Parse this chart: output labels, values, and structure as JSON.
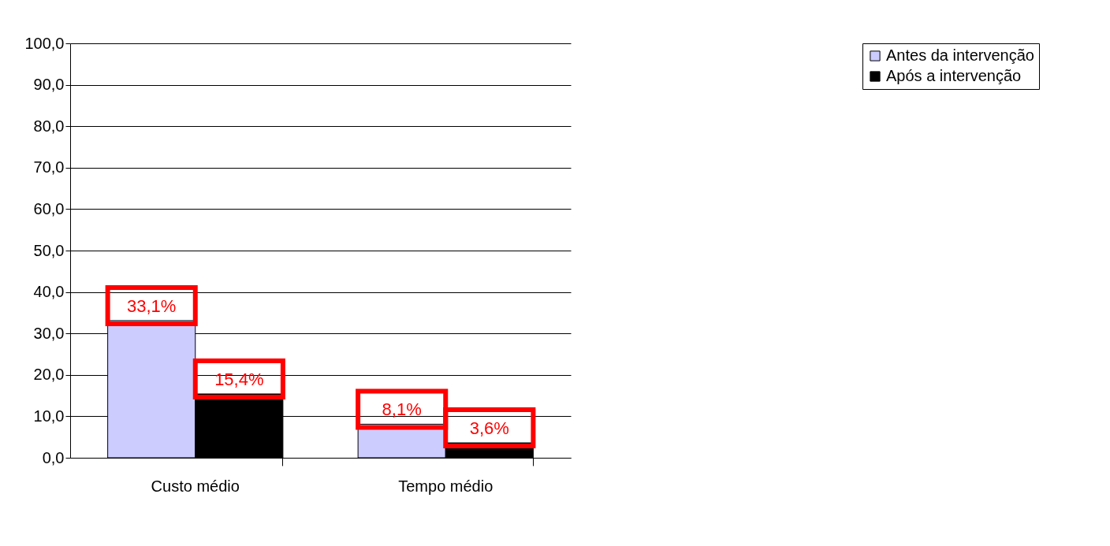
{
  "chart_data": {
    "type": "bar",
    "categories": [
      "Custo médio",
      "Tempo médio"
    ],
    "series": [
      {
        "name": "Antes da intervenção",
        "color": "#ccccff",
        "values": [
          33.1,
          8.1
        ],
        "value_labels": [
          "33,1%",
          "8,1%"
        ]
      },
      {
        "name": "Após a intervenção",
        "color": "#000000",
        "values": [
          15.4,
          3.6
        ],
        "value_labels": [
          "15,4%",
          "3,6%"
        ]
      }
    ],
    "ylim": [
      0,
      100
    ],
    "yticks": [
      {
        "value": 0,
        "label": "0,0"
      },
      {
        "value": 10,
        "label": "10,0"
      },
      {
        "value": 20,
        "label": "20,0"
      },
      {
        "value": 30,
        "label": "30,0"
      },
      {
        "value": 40,
        "label": "40,0"
      },
      {
        "value": 50,
        "label": "50,0"
      },
      {
        "value": 60,
        "label": "60,0"
      },
      {
        "value": 70,
        "label": "70,0"
      },
      {
        "value": 80,
        "label": "80,0"
      },
      {
        "value": 90,
        "label": "90,0"
      },
      {
        "value": 100,
        "label": "100,0"
      }
    ],
    "grid": "y",
    "legend": "right"
  }
}
